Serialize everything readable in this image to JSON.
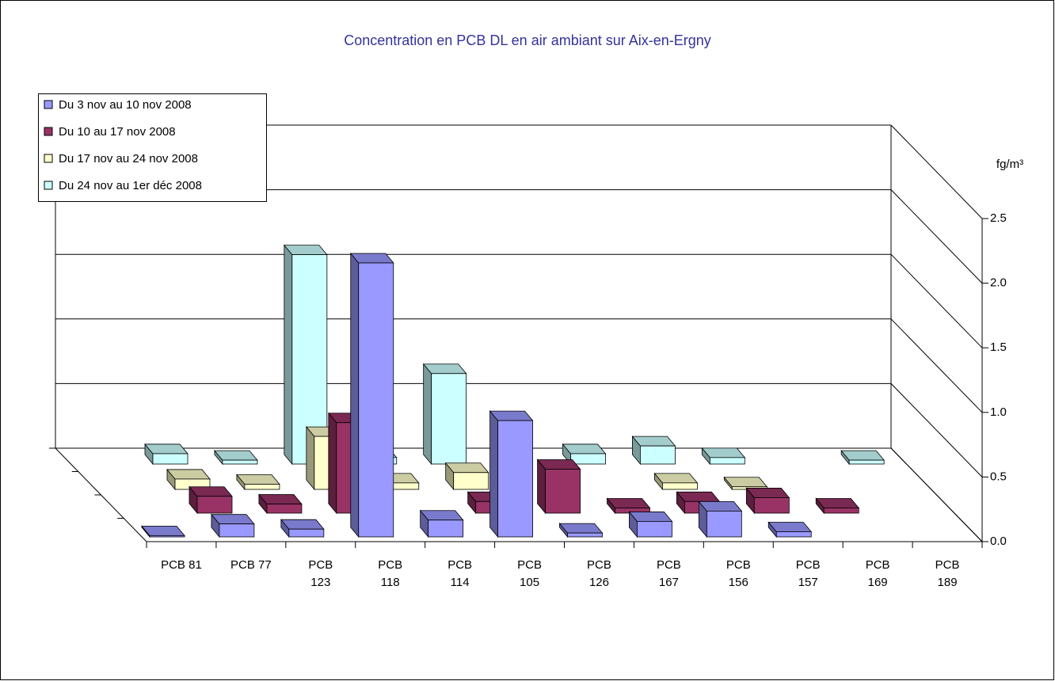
{
  "chart_data": {
    "type": "bar3d",
    "title": "Concentration en PCB DL en air ambiant sur Aix-en-Ergny",
    "y_unit": "fg/m³",
    "categories": [
      "PCB 81",
      "PCB 77",
      "PCB 123",
      "PCB 118",
      "PCB 114",
      "PCB 105",
      "PCB 126",
      "PCB 167",
      "PCB 156",
      "PCB 157",
      "PCB 169",
      "PCB 189"
    ],
    "series": [
      {
        "name": "Du 3 nov au 10 nov 2008",
        "color": "#9999ff",
        "values": [
          0.01,
          0.1,
          0.06,
          2.12,
          0.13,
          0.9,
          0.03,
          0.12,
          0.2,
          0.04,
          null,
          null
        ]
      },
      {
        "name": "Du 10 au 17 nov 2008",
        "color": "#993366",
        "values": [
          0.13,
          0.07,
          0.7,
          null,
          0.09,
          0.34,
          0.04,
          0.09,
          0.12,
          0.04,
          null,
          null
        ]
      },
      {
        "name": "Du 17 nov au 24 nov 2008",
        "color": "#ffffcc",
        "values": [
          0.08,
          0.04,
          0.41,
          0.05,
          0.13,
          null,
          null,
          0.05,
          0.02,
          null,
          null,
          null
        ]
      },
      {
        "name": "Du 24 nov au 1er déc 2008",
        "color": "#ccffff",
        "values": [
          0.08,
          0.03,
          1.62,
          0.05,
          0.7,
          null,
          0.08,
          0.14,
          0.05,
          null,
          0.03,
          null
        ]
      }
    ],
    "ylim": [
      0,
      2.5
    ],
    "yticks": [
      {
        "value": 0,
        "label": "0.0"
      },
      {
        "value": 0.5,
        "label": "0.5"
      },
      {
        "value": 1,
        "label": "1.0"
      },
      {
        "value": 1.5,
        "label": "1.5"
      },
      {
        "value": 2,
        "label": "2.0"
      },
      {
        "value": 2.5,
        "label": "2.5"
      }
    ],
    "grid": true,
    "legend": "top-left"
  }
}
